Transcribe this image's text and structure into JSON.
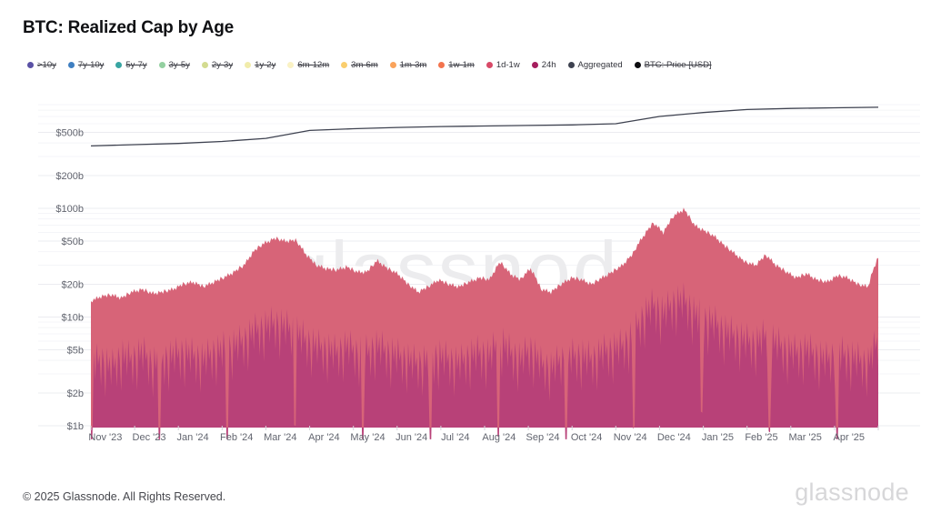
{
  "page": {
    "title": "BTC: Realized Cap by Age",
    "watermark": "glassnode",
    "footer_copyright": "© 2025 Glassnode. All Rights Reserved.",
    "footer_logo": "glassnode"
  },
  "chart_data": {
    "type": "area",
    "y_scale": "log",
    "unit": "USD billions",
    "ylim": [
      1,
      900
    ],
    "grid": "horizontal-only",
    "legend_position": "top",
    "x_labels": [
      "Nov '23",
      "Dec '23",
      "Jan '24",
      "Feb '24",
      "Mar '24",
      "Apr '24",
      "May '24",
      "Jun '24",
      "Jul '24",
      "Aug '24",
      "Sep '24",
      "Oct '24",
      "Nov '24",
      "Dec '24",
      "Jan '25",
      "Feb '25",
      "Mar '25",
      "Apr '25"
    ],
    "y_ticks": [
      {
        "value": 500,
        "label": "$500b"
      },
      {
        "value": 200,
        "label": "$200b"
      },
      {
        "value": 100,
        "label": "$100b"
      },
      {
        "value": 50,
        "label": "$50b"
      },
      {
        "value": 20,
        "label": "$20b"
      },
      {
        "value": 10,
        "label": "$10b"
      },
      {
        "value": 5,
        "label": "$5b"
      },
      {
        "value": 2,
        "label": "$2b"
      },
      {
        "value": 1,
        "label": "$1b"
      }
    ],
    "legend": [
      {
        "label": ">10y",
        "color": "#5a51a5",
        "active": false
      },
      {
        "label": "7y-10y",
        "color": "#3f7fc1",
        "active": false
      },
      {
        "label": "5y-7y",
        "color": "#38a5a2",
        "active": false
      },
      {
        "label": "3y-5y",
        "color": "#93d0a0",
        "active": false
      },
      {
        "label": "2y-3y",
        "color": "#d3db90",
        "active": false
      },
      {
        "label": "1y-2y",
        "color": "#f1ecab",
        "active": false
      },
      {
        "label": "6m-12m",
        "color": "#faf2c4",
        "active": false
      },
      {
        "label": "3m-6m",
        "color": "#face6e",
        "active": false
      },
      {
        "label": "1m-3m",
        "color": "#faa35b",
        "active": false
      },
      {
        "label": "1w-1m",
        "color": "#f3744e",
        "active": false
      },
      {
        "label": "1d-1w",
        "color": "#d84a68",
        "active": true
      },
      {
        "label": "24h",
        "color": "#a51e5e",
        "active": true
      },
      {
        "label": "Aggregated",
        "color": "#3e4250",
        "active": true
      },
      {
        "label": "BTC: Price [USD]",
        "color": "#0c0c0f",
        "active": false
      }
    ],
    "series": [
      {
        "name": "1d-1w",
        "type": "area",
        "color": "#d76478",
        "resolution": "weekly",
        "values": [
          14,
          15.5,
          16,
          15,
          17,
          18,
          16.5,
          17,
          18,
          20,
          21,
          19,
          21,
          23,
          26,
          30,
          41,
          48,
          53,
          50,
          51,
          38,
          30,
          28,
          27,
          29,
          26,
          26,
          33,
          28,
          25,
          20,
          17,
          19,
          22,
          20,
          19,
          21,
          23,
          22,
          32,
          25,
          22,
          28,
          18,
          17,
          20,
          23,
          22,
          20,
          23,
          26,
          30,
          38,
          55,
          73,
          60,
          85,
          98,
          70,
          62,
          55,
          45,
          38,
          32,
          30,
          37,
          30,
          26,
          23,
          25,
          22,
          21,
          24,
          23,
          20,
          19,
          35
        ]
      },
      {
        "name": "24h",
        "type": "area",
        "color": "#b84178",
        "resolution": "weekly",
        "hi": [
          5.5,
          6,
          5,
          6.5,
          6,
          7,
          5.5,
          6,
          6.5,
          7,
          6.5,
          6,
          7,
          7.5,
          8,
          9,
          11,
          12,
          13,
          12,
          11,
          9,
          8,
          7.5,
          7,
          8,
          7,
          7,
          8,
          7,
          6.5,
          6,
          5.5,
          6,
          6.5,
          6,
          5.5,
          6.5,
          7,
          6.5,
          9,
          7,
          6,
          7.5,
          5.5,
          5,
          6,
          6.5,
          6.5,
          6,
          7,
          7.5,
          8,
          10,
          15,
          19,
          16,
          20,
          21,
          16,
          14,
          13,
          11,
          10,
          9,
          8.5,
          10,
          8.5,
          7.5,
          7,
          7.5,
          6.5,
          6,
          7,
          6.5,
          6,
          5.5,
          9
        ],
        "lo": [
          1.3,
          1.4,
          1.2,
          1.5,
          1.4,
          1.6,
          1.3,
          1.4,
          1.5,
          1.6,
          1.5,
          1.4,
          1.6,
          1.7,
          1.9,
          2.1,
          2.5,
          2.8,
          3,
          2.8,
          2.5,
          2.1,
          1.9,
          1.8,
          1.6,
          1.9,
          1.6,
          1.6,
          1.9,
          1.6,
          1.5,
          1.4,
          1.3,
          1.4,
          1.5,
          1.4,
          1.3,
          1.5,
          1.6,
          1.5,
          2.1,
          1.6,
          1.4,
          1.7,
          1.3,
          1.2,
          1.4,
          1.5,
          1.5,
          1.4,
          1.6,
          1.7,
          1.9,
          2.3,
          3.5,
          4.4,
          3.7,
          4.6,
          4.9,
          3.7,
          3.2,
          3,
          2.5,
          2.3,
          2.1,
          2,
          2.3,
          2,
          1.7,
          1.6,
          1.7,
          1.5,
          1.4,
          1.6,
          1.5,
          1.4,
          1.3,
          2.1
        ]
      },
      {
        "name": "Aggregated",
        "type": "line",
        "color": "#3e4250",
        "resolution": "monthly",
        "values": [
          375,
          385,
          395,
          412,
          440,
          520,
          540,
          555,
          565,
          572,
          578,
          585,
          600,
          700,
          760,
          810,
          830,
          840,
          850
        ]
      }
    ],
    "render": {
      "spike_pattern": [
        0.95,
        0.45,
        0.8,
        0.3,
        1.0,
        0.5,
        0.7,
        0.2,
        0.85,
        0.55,
        0.12
      ],
      "jitter_pattern": [
        1,
        0.96,
        1.03,
        0.98,
        1.05,
        0.97,
        1.01,
        0.95,
        1.04,
        0.99,
        1.02,
        0.96,
        1.05
      ],
      "deep_dip_every_days": 47,
      "deep_dip_factor": 0.4
    },
    "colors": {
      "grid_major": "#ebecf0",
      "grid_minor": "#f4f5f8",
      "axis_text": "#62656f",
      "tick_mark": "#d4d5da"
    }
  }
}
